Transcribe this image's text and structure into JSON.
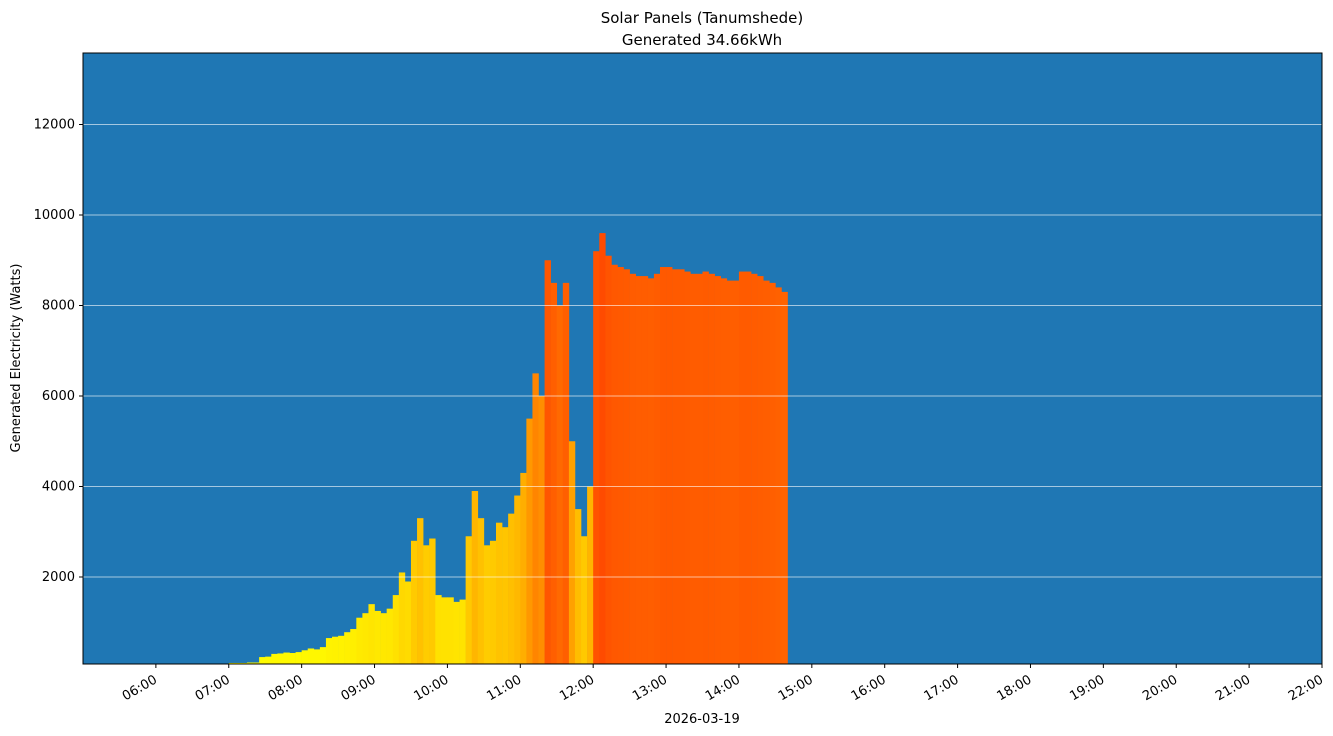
{
  "chart_data": {
    "type": "bar",
    "title": "Solar Panels (Tanumshede)",
    "subtitle": "Generated 34.66kWh",
    "x_label": "2026-03-19",
    "y_label": "Generated Electricity (Watts)",
    "x": [
      "06:20",
      "06:25",
      "06:30",
      "06:35",
      "06:40",
      "06:45",
      "06:50",
      "06:55",
      "07:00",
      "07:05",
      "07:10",
      "07:15",
      "07:20",
      "07:25",
      "07:30",
      "07:35",
      "07:40",
      "07:45",
      "07:50",
      "07:55",
      "08:00",
      "08:05",
      "08:10",
      "08:15",
      "08:20",
      "08:25",
      "08:30",
      "08:35",
      "08:40",
      "08:45",
      "08:50",
      "08:55",
      "09:00",
      "09:05",
      "09:10",
      "09:15",
      "09:20",
      "09:25",
      "09:30",
      "09:35",
      "09:40",
      "09:45",
      "09:50",
      "09:55",
      "10:00",
      "10:05",
      "10:10",
      "10:15",
      "10:20",
      "10:25",
      "10:30",
      "10:35",
      "10:40",
      "10:45",
      "10:50",
      "10:55",
      "11:00",
      "11:05",
      "11:10",
      "11:15",
      "11:20",
      "11:25",
      "11:30",
      "11:35",
      "11:40",
      "11:45",
      "11:50",
      "11:55",
      "12:00",
      "12:05",
      "12:10",
      "12:15",
      "12:20",
      "12:25",
      "12:30",
      "12:35",
      "12:40",
      "12:45",
      "12:50",
      "12:55",
      "13:00",
      "13:05",
      "13:10",
      "13:15",
      "13:20",
      "13:25",
      "13:30",
      "13:35",
      "13:40",
      "13:45",
      "13:50",
      "13:55",
      "14:00",
      "14:05",
      "14:10",
      "14:15",
      "14:20",
      "14:25",
      "14:30",
      "14:35"
    ],
    "values": [
      40,
      40,
      40,
      40,
      40,
      50,
      50,
      60,
      100,
      100,
      100,
      110,
      110,
      230,
      240,
      300,
      310,
      330,
      320,
      340,
      380,
      420,
      400,
      450,
      650,
      680,
      700,
      780,
      850,
      1100,
      1200,
      1400,
      1250,
      1200,
      1300,
      1600,
      2100,
      1900,
      2800,
      3300,
      2700,
      2850,
      1600,
      1550,
      1550,
      1450,
      1500,
      2900,
      3900,
      3300,
      2700,
      2800,
      3200,
      3100,
      3400,
      3800,
      4300,
      5500,
      6500,
      6000,
      9000,
      8500,
      8000,
      8500,
      5000,
      3500,
      2900,
      4000,
      9200,
      9600,
      9100,
      8900,
      8850,
      8800,
      8700,
      8650,
      8650,
      8600,
      8700,
      8850,
      8850,
      8800,
      8800,
      8750,
      8700,
      8700,
      8750,
      8700,
      8650,
      8600,
      8550,
      8550,
      8750,
      8750,
      8700,
      8650,
      8550,
      8500,
      8400,
      8300
    ],
    "colormap": "autumn_r",
    "background": "#1f77b4",
    "xlim": [
      "05:00",
      "22:00"
    ],
    "xticks": [
      "06:00",
      "07:00",
      "08:00",
      "09:00",
      "10:00",
      "11:00",
      "12:00",
      "13:00",
      "14:00",
      "15:00",
      "16:00",
      "17:00",
      "18:00",
      "19:00",
      "20:00",
      "21:00",
      "22:00"
    ],
    "ylim": [
      77,
      13580
    ],
    "yticks": [
      2000,
      4000,
      6000,
      8000,
      10000,
      12000
    ],
    "grid": true
  }
}
